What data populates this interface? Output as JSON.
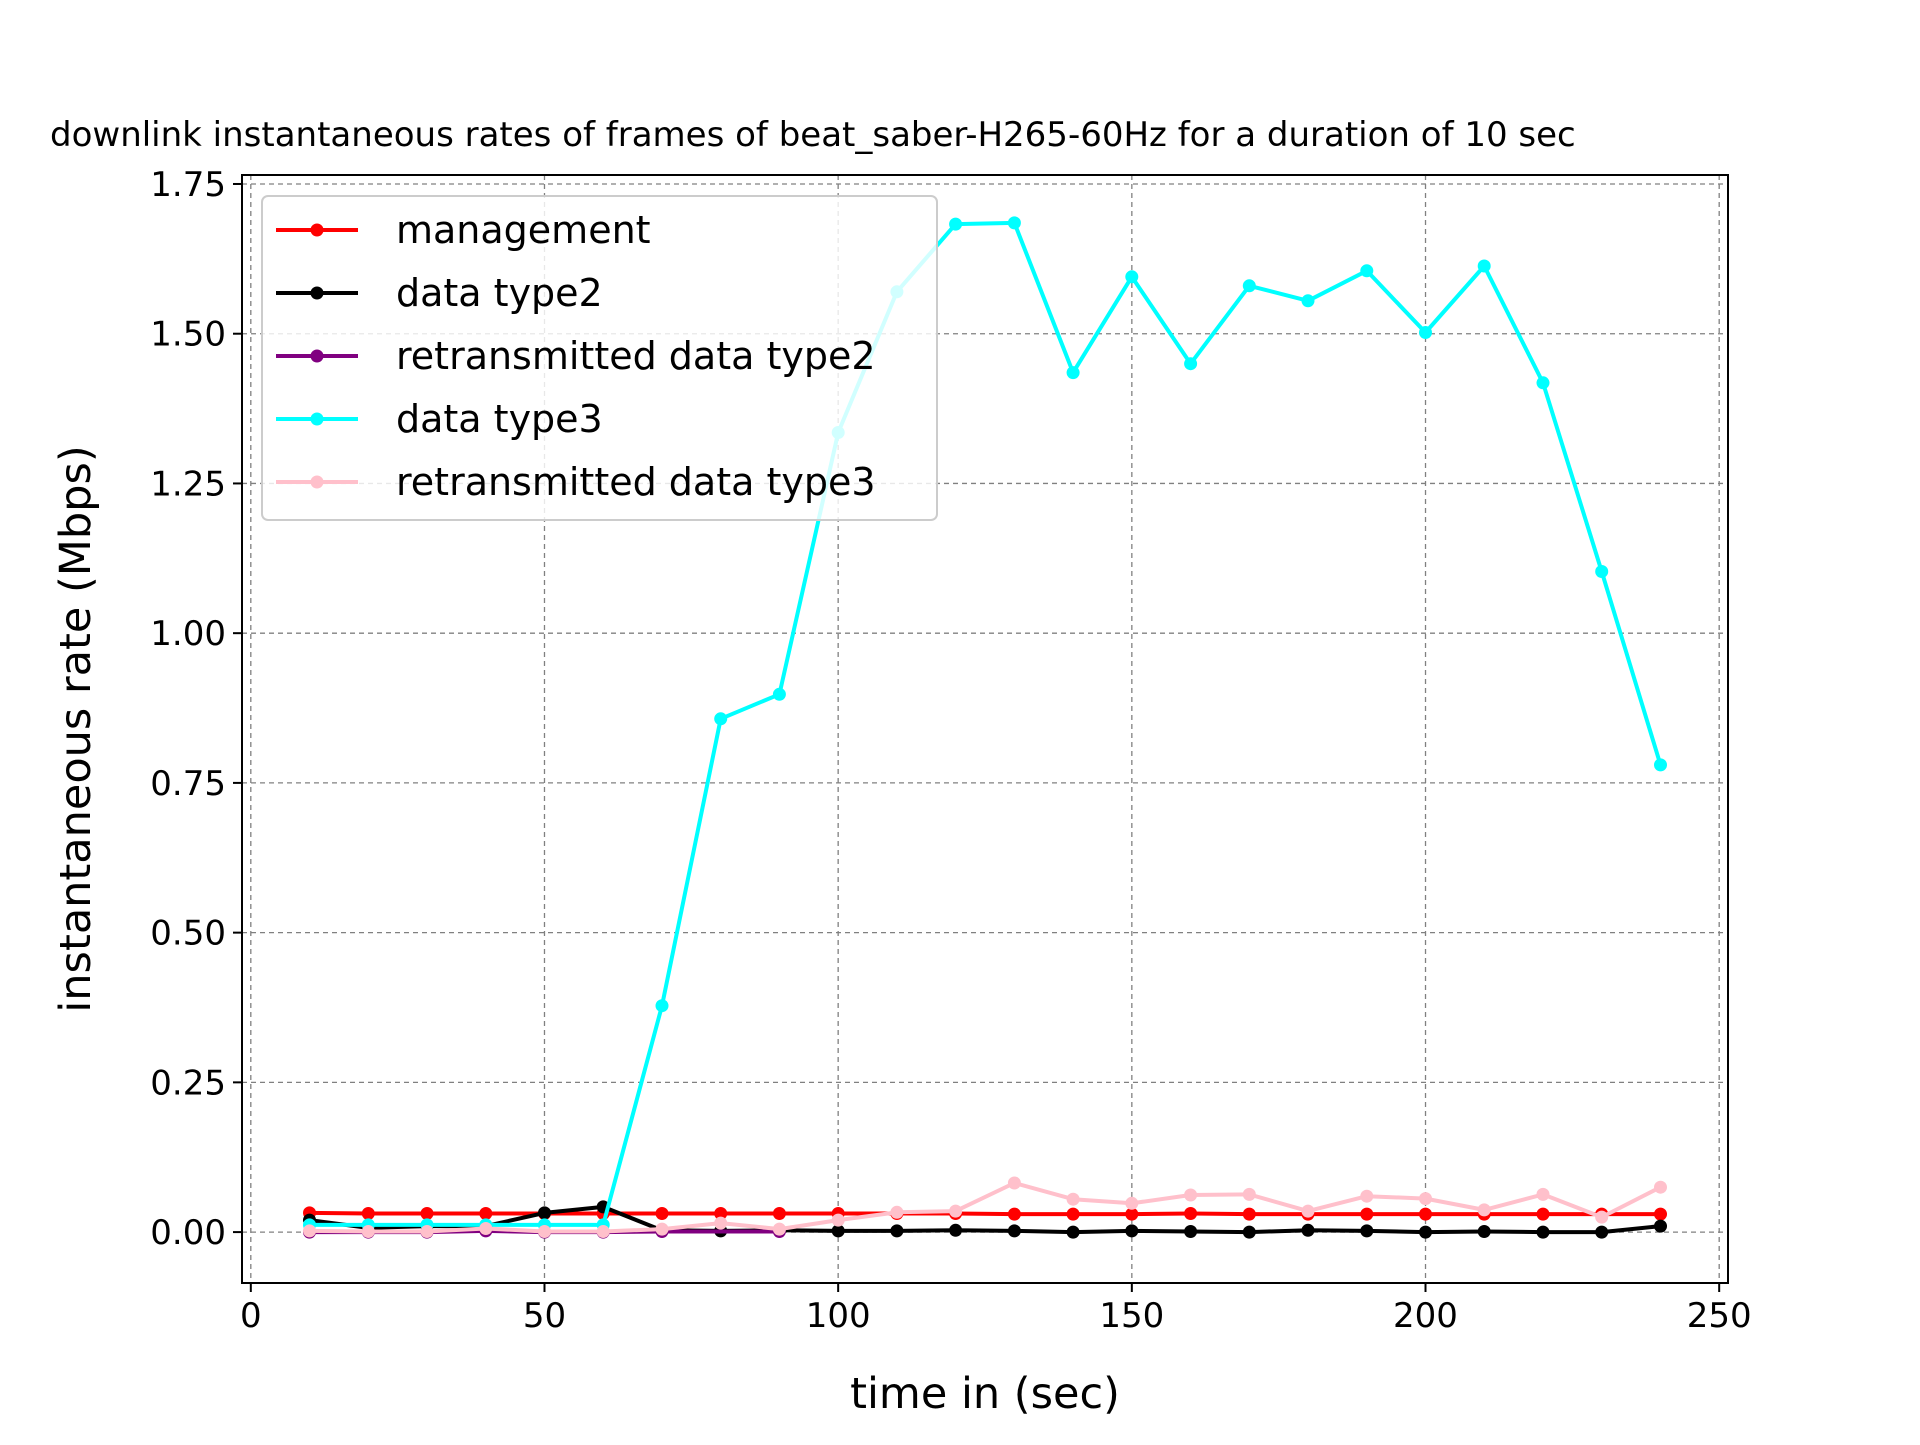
{
  "chart_data": {
    "type": "line",
    "title": "downlink instantaneous rates of frames of beat_saber-H265-60Hz for a duration of 10 sec",
    "xlabel": "time in (sec)",
    "ylabel": "instantaneous rate (Mbps)",
    "xlim": [
      -1.5,
      251.5
    ],
    "ylim": [
      -0.085,
      1.765
    ],
    "xticks": [
      0,
      50,
      100,
      150,
      200,
      250
    ],
    "xtick_labels": [
      "0",
      "50",
      "100",
      "150",
      "200",
      "250"
    ],
    "yticks": [
      0,
      0.25,
      0.5,
      0.75,
      1.0,
      1.25,
      1.5,
      1.75
    ],
    "ytick_labels": [
      "0.00",
      "0.25",
      "0.50",
      "0.75",
      "1.00",
      "1.25",
      "1.50",
      "1.75"
    ],
    "grid": true,
    "legend_position": "upper-left",
    "x": [
      10,
      20,
      30,
      40,
      50,
      60,
      70,
      80,
      90,
      100,
      110,
      120,
      130,
      140,
      150,
      160,
      170,
      180,
      190,
      200,
      210,
      220,
      230,
      240
    ],
    "series": [
      {
        "name": "management",
        "color": "#ff0000",
        "values": [
          0.032,
          0.031,
          0.031,
          0.031,
          0.031,
          0.031,
          0.031,
          0.031,
          0.031,
          0.031,
          0.031,
          0.031,
          0.03,
          0.03,
          0.03,
          0.031,
          0.03,
          0.03,
          0.03,
          0.03,
          0.03,
          0.03,
          0.03,
          0.03
        ]
      },
      {
        "name": "data type2",
        "color": "#000000",
        "values": [
          0.02,
          0.007,
          0.01,
          0.01,
          0.032,
          0.042,
          0.003,
          0.002,
          0.003,
          0.002,
          0.002,
          0.003,
          0.002,
          0.0,
          0.002,
          0.001,
          0.0,
          0.003,
          0.002,
          0.0,
          0.001,
          0.0,
          0.0,
          0.01
        ]
      },
      {
        "name": "retransmitted data type2",
        "color": "#800080",
        "values": [
          0.0,
          0.0,
          0.0,
          0.002,
          0.0,
          0.0,
          0.001,
          null,
          0.001,
          null,
          null,
          null,
          null,
          null,
          null,
          null,
          null,
          null,
          null,
          null,
          null,
          null,
          null,
          null
        ]
      },
      {
        "name": "data type3",
        "color": "#00ffff",
        "values": [
          0.012,
          0.012,
          0.012,
          0.012,
          0.012,
          0.012,
          0.378,
          0.857,
          0.898,
          1.335,
          1.57,
          1.683,
          1.685,
          1.435,
          1.595,
          1.45,
          1.58,
          1.555,
          1.605,
          1.502,
          1.613,
          1.418,
          1.103,
          0.78
        ]
      },
      {
        "name": "retransmitted data type3",
        "color": "#ffc0cb",
        "values": [
          0.002,
          0.001,
          0.001,
          0.006,
          0.001,
          0.001,
          0.005,
          0.015,
          0.005,
          0.02,
          0.033,
          0.035,
          0.082,
          0.055,
          0.048,
          0.062,
          0.063,
          0.035,
          0.06,
          0.056,
          0.037,
          0.063,
          0.025,
          0.075
        ]
      }
    ]
  }
}
